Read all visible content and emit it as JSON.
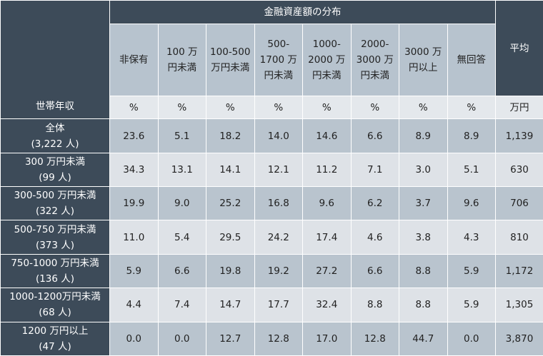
{
  "header": {
    "group_title": "金融資産額の分布",
    "row_header": "世帯年収",
    "average_header": "平均",
    "average_unit": "万円",
    "columns": [
      [
        "非保有"
      ],
      [
        "100 万",
        "円未満"
      ],
      [
        "100-500",
        "万円未満"
      ],
      [
        "500-",
        "1700 万",
        "円未満"
      ],
      [
        "1000-",
        "2000 万",
        "円未満"
      ],
      [
        "2000-",
        "3000 万",
        "円未満"
      ],
      [
        "3000 万",
        "円以上"
      ],
      [
        "無回答"
      ]
    ],
    "units": [
      "%",
      "%",
      "%",
      "%",
      "%",
      "%",
      "%",
      "%"
    ]
  },
  "rows": [
    {
      "label": "全体",
      "count": "(3,222 人)",
      "values": [
        "23.6",
        "5.1",
        "18.2",
        "14.0",
        "14.6",
        "6.6",
        "8.9",
        "8.9"
      ],
      "average": "1,139"
    },
    {
      "label": "300 万円未満",
      "count": "(99 人)",
      "values": [
        "34.3",
        "13.1",
        "14.1",
        "12.1",
        "11.2",
        "7.1",
        "3.0",
        "5.1"
      ],
      "average": "630"
    },
    {
      "label": "300-500 万円未満",
      "count": "(322 人)",
      "values": [
        "19.9",
        "9.0",
        "25.2",
        "16.8",
        "9.6",
        "6.2",
        "3.7",
        "9.6"
      ],
      "average": "706"
    },
    {
      "label": "500-750 万円未満",
      "count": "(373 人)",
      "values": [
        "11.0",
        "5.4",
        "29.5",
        "24.2",
        "17.4",
        "4.6",
        "3.8",
        "4.3"
      ],
      "average": "810"
    },
    {
      "label": "750-1000 万円未満",
      "count": "(136 人)",
      "values": [
        "5.9",
        "6.6",
        "19.8",
        "19.2",
        "27.2",
        "6.6",
        "8.8",
        "5.9"
      ],
      "average": "1,172"
    },
    {
      "label": "1000-1200万円未満",
      "count": "(68 人)",
      "values": [
        "4.4",
        "7.4",
        "14.7",
        "17.7",
        "32.4",
        "8.8",
        "8.8",
        "5.9"
      ],
      "average": "1,305"
    },
    {
      "label": "1200 万円以上",
      "count": "(47 人)",
      "values": [
        "0.0",
        "0.0",
        "12.7",
        "12.8",
        "17.0",
        "12.8",
        "44.7",
        "0.0"
      ],
      "average": "3,870"
    }
  ]
}
